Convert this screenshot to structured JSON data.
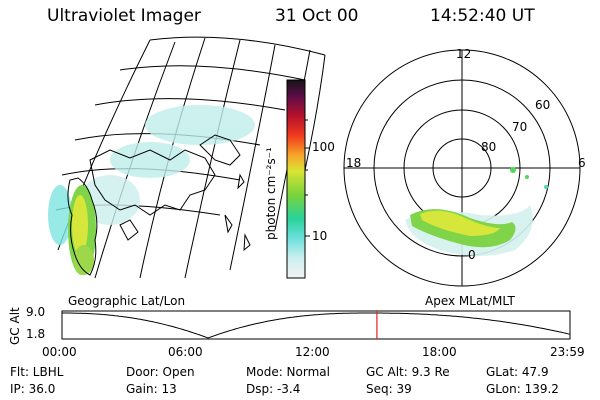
{
  "header": {
    "title": "Ultraviolet Imager",
    "date": "31 Oct 00",
    "time": "14:52:40 UT"
  },
  "geo_panel": {
    "label": "Geographic Lat/Lon"
  },
  "polar_panel": {
    "label": "Apex MLat/MLT",
    "mlt_labels": [
      "12",
      "18",
      "6",
      "0"
    ],
    "lat_labels": [
      "60",
      "70",
      "80"
    ]
  },
  "colorbar": {
    "unit_label": "photon cm⁻²s⁻¹",
    "tick_labels": [
      "100",
      "10"
    ]
  },
  "altitude_plot": {
    "ylabel": "GC Alt",
    "y_ticks": [
      "9.0",
      "1.8"
    ],
    "x_ticks": [
      "00:00",
      "06:00",
      "12:00",
      "18:00",
      "23:59"
    ],
    "current_marker_time": "14:52:40"
  },
  "info": {
    "filter": "Flt: LBHL",
    "ip": "IP: 36.0",
    "door": "Door: Open",
    "gain": "Gain: 13",
    "mode": "Mode: Normal",
    "dsp": "Dsp:    -3.4",
    "gcalt": "GC Alt: 9.3 Re",
    "seq": "Seq: 39",
    "glat": "GLat:   47.9",
    "glon": "GLon: 139.2"
  },
  "colors": {
    "aurora_green": "#7fd44a",
    "aurora_yellow": "#d6e63a",
    "aurora_cyan": "#7ee6e0",
    "marker_red": "#e02020"
  }
}
